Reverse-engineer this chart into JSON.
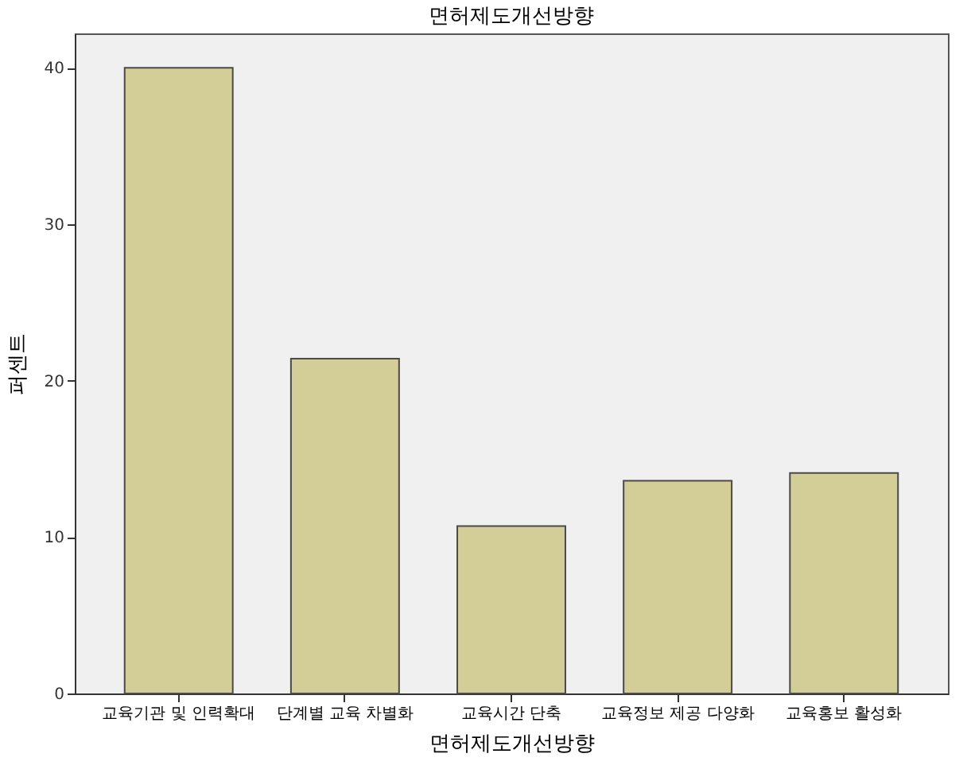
{
  "chart_data": {
    "type": "bar",
    "title": "면허제도개선방향",
    "xlabel": "면허제도개선방향",
    "ylabel": "퍼센트",
    "categories": [
      "교육기관 및 인력확대",
      "단계별 교육 차별화",
      "교육시간 단축",
      "교육정보 제공 다양화",
      "교육홍보 활성화"
    ],
    "values": [
      40.0,
      21.4,
      10.7,
      13.6,
      14.1
    ],
    "color": "#d3cd98",
    "ylim": [
      0,
      42.2
    ],
    "yticks": [
      0,
      10,
      20,
      30,
      40
    ],
    "grid": false
  }
}
